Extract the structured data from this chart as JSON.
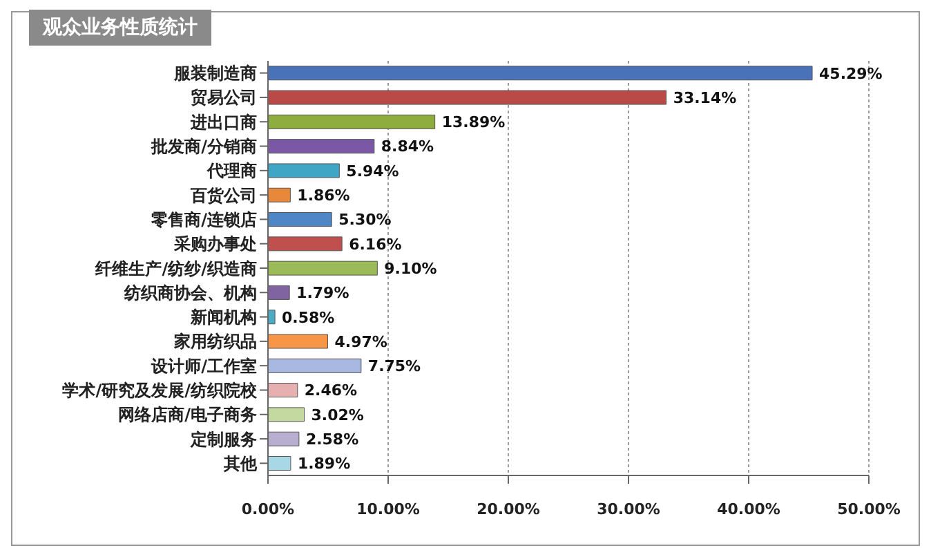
{
  "chart_data": {
    "type": "bar",
    "orientation": "horizontal",
    "title": "观众业务性质统计",
    "categories": [
      "服装制造商",
      "贸易公司",
      "进出口商",
      "批发商/分销商",
      "代理商",
      "百货公司",
      "零售商/连锁店",
      "采购办事处",
      "纤维生产/纺纱/织造商",
      "纺织商协会、机构",
      "新闻机构",
      "家用纺织品",
      "设计师/工作室",
      "学术/研究及发展/纺织院校",
      "网络店商/电子商务",
      "定制服务",
      "其他"
    ],
    "values": [
      45.29,
      33.14,
      13.89,
      8.84,
      5.94,
      1.86,
      5.3,
      6.16,
      9.1,
      1.79,
      0.58,
      4.97,
      7.75,
      2.46,
      3.02,
      2.58,
      1.89
    ],
    "value_labels": [
      "45.29%",
      "33.14%",
      "13.89%",
      "8.84%",
      "5.94%",
      "1.86%",
      "5.30%",
      "6.16%",
      "9.10%",
      "1.79%",
      "0.58%",
      "4.97%",
      "7.75%",
      "2.46%",
      "3.02%",
      "2.58%",
      "1.89%"
    ],
    "colors": [
      "#4a72b8",
      "#b94a48",
      "#8fac3e",
      "#7b58a6",
      "#3fa6c6",
      "#e8883a",
      "#4f86c6",
      "#c0504d",
      "#9bbb59",
      "#8064a2",
      "#4bacc6",
      "#f79646",
      "#a9b8e0",
      "#e6b0b0",
      "#c4d9a0",
      "#b8aed0",
      "#a8d8e6"
    ],
    "xlim": [
      0,
      50
    ],
    "xticks": [
      {
        "value": 0,
        "label": "0.00%"
      },
      {
        "value": 10,
        "label": "10.00%"
      },
      {
        "value": 20,
        "label": "20.00%"
      },
      {
        "value": 30,
        "label": "30.00%"
      },
      {
        "value": 40,
        "label": "40.00%"
      },
      {
        "value": 50,
        "label": "50.00%"
      }
    ],
    "grid": "x"
  }
}
